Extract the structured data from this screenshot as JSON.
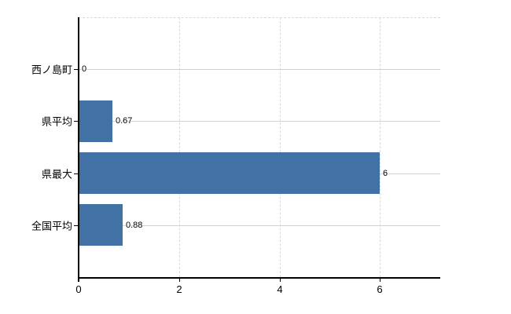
{
  "chart_data": {
    "type": "bar",
    "orientation": "horizontal",
    "title": "",
    "xlabel": "",
    "ylabel": "",
    "categories": [
      "西ノ島町",
      "県平均",
      "県最大",
      "全国平均"
    ],
    "values": [
      0,
      0.67,
      6,
      0.88
    ],
    "value_labels": [
      "0",
      "0.67",
      "6",
      "0.88"
    ],
    "x_ticks": [
      0,
      2,
      4,
      6
    ],
    "x_tick_labels": [
      "0",
      "2",
      "4",
      "6"
    ],
    "xlim": [
      0,
      7.2
    ],
    "grid": true,
    "legend": false,
    "colors": {
      "bar": "#4271a6",
      "horizontal_gridline": "#ccd4c9",
      "vertical_gridline": "#d9d9d9",
      "axis": "#000000",
      "text": "#000000",
      "background": "#ffffff"
    }
  }
}
